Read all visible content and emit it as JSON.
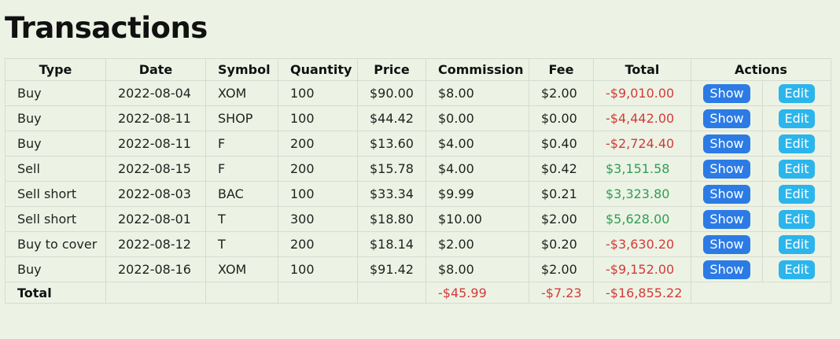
{
  "page": {
    "title": "Transactions"
  },
  "table": {
    "headers": {
      "type": "Type",
      "date": "Date",
      "symbol": "Symbol",
      "quantity": "Quantity",
      "price": "Price",
      "commission": "Commission",
      "fee": "Fee",
      "total": "Total",
      "actions": "Actions"
    },
    "rows": [
      {
        "type": "Buy",
        "date": "2022-08-04",
        "symbol": "XOM",
        "quantity": "100",
        "price": "$90.00",
        "commission": "$8.00",
        "fee": "$2.00",
        "total": "-$9,010.00",
        "total_sign": "neg"
      },
      {
        "type": "Buy",
        "date": "2022-08-11",
        "symbol": "SHOP",
        "quantity": "100",
        "price": "$44.42",
        "commission": "$0.00",
        "fee": "$0.00",
        "total": "-$4,442.00",
        "total_sign": "neg"
      },
      {
        "type": "Buy",
        "date": "2022-08-11",
        "symbol": "F",
        "quantity": "200",
        "price": "$13.60",
        "commission": "$4.00",
        "fee": "$0.40",
        "total": "-$2,724.40",
        "total_sign": "neg"
      },
      {
        "type": "Sell",
        "date": "2022-08-15",
        "symbol": "F",
        "quantity": "200",
        "price": "$15.78",
        "commission": "$4.00",
        "fee": "$0.42",
        "total": "$3,151.58",
        "total_sign": "pos"
      },
      {
        "type": "Sell short",
        "date": "2022-08-03",
        "symbol": "BAC",
        "quantity": "100",
        "price": "$33.34",
        "commission": "$9.99",
        "fee": "$0.21",
        "total": "$3,323.80",
        "total_sign": "pos"
      },
      {
        "type": "Sell short",
        "date": "2022-08-01",
        "symbol": "T",
        "quantity": "300",
        "price": "$18.80",
        "commission": "$10.00",
        "fee": "$2.00",
        "total": "$5,628.00",
        "total_sign": "pos"
      },
      {
        "type": "Buy to cover",
        "date": "2022-08-12",
        "symbol": "T",
        "quantity": "200",
        "price": "$18.14",
        "commission": "$2.00",
        "fee": "$0.20",
        "total": "-$3,630.20",
        "total_sign": "neg"
      },
      {
        "type": "Buy",
        "date": "2022-08-16",
        "symbol": "XOM",
        "quantity": "100",
        "price": "$91.42",
        "commission": "$8.00",
        "fee": "$2.00",
        "total": "-$9,152.00",
        "total_sign": "neg"
      }
    ],
    "actions": {
      "show_label": "Show",
      "edit_label": "Edit"
    },
    "footer": {
      "label": "Total",
      "commission": "-$45.99",
      "fee": "-$7.23",
      "total": "-$16,855.22"
    }
  },
  "colors": {
    "background": "#ecf3e4",
    "negative": "#d43a3a",
    "positive": "#2f9e55",
    "show_button": "#2c7be5",
    "edit_button": "#2bb5ec"
  }
}
